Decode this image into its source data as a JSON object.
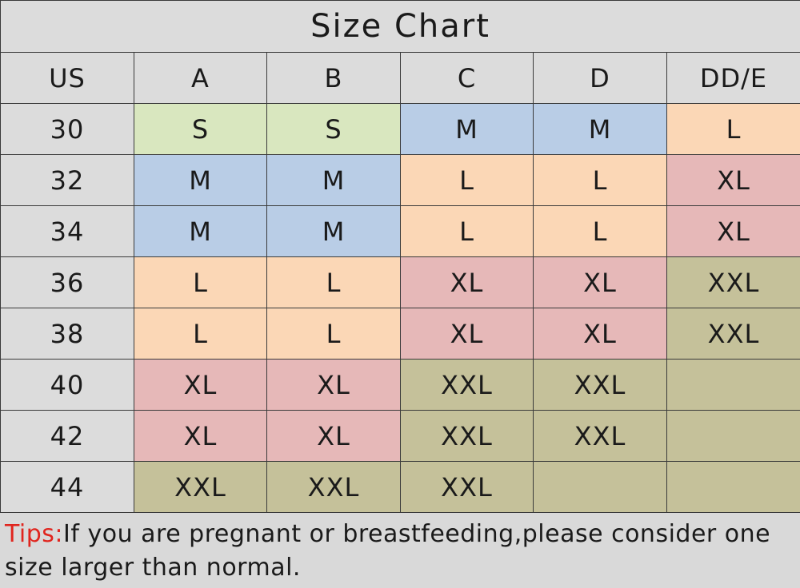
{
  "title": "Size Chart",
  "headers": [
    "US",
    "A",
    "B",
    "C",
    "D",
    "DD/E"
  ],
  "colors": {
    "S": "#d9e7bf",
    "M": "#b9cde6",
    "L": "#fbd7b6",
    "XL": "#e6b8b8",
    "XXL": "#c5c19a",
    "empty": "#c5c19a",
    "header": "#dcdcdc",
    "tips_label": "#e0251e"
  },
  "rows": [
    {
      "us": "30",
      "cells": [
        "S",
        "S",
        "M",
        "M",
        "L"
      ]
    },
    {
      "us": "32",
      "cells": [
        "M",
        "M",
        "L",
        "L",
        "XL"
      ]
    },
    {
      "us": "34",
      "cells": [
        "M",
        "M",
        "L",
        "L",
        "XL"
      ]
    },
    {
      "us": "36",
      "cells": [
        "L",
        "L",
        "XL",
        "XL",
        "XXL"
      ]
    },
    {
      "us": "38",
      "cells": [
        "L",
        "L",
        "XL",
        "XL",
        "XXL"
      ]
    },
    {
      "us": "40",
      "cells": [
        "XL",
        "XL",
        "XXL",
        "XXL",
        ""
      ]
    },
    {
      "us": "42",
      "cells": [
        "XL",
        "XL",
        "XXL",
        "XXL",
        ""
      ]
    },
    {
      "us": "44",
      "cells": [
        "XXL",
        "XXL",
        "XXL",
        "",
        ""
      ]
    }
  ],
  "tips": {
    "label": "Tips:",
    "text": "If you are pregnant or breastfeeding,please consider one size larger than normal."
  }
}
